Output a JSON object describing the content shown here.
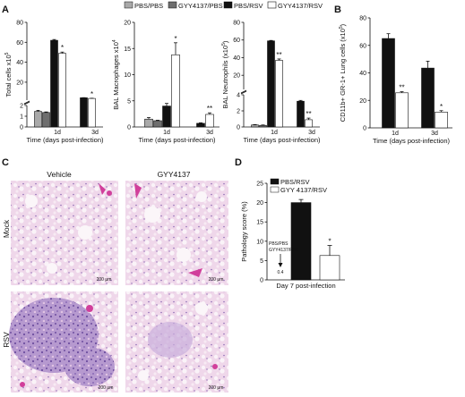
{
  "legend_top": {
    "items": [
      {
        "label": "PBS/PBS",
        "color": "#a9a9a9"
      },
      {
        "label": "GYY4137/PBS",
        "color": "#6e6e6e"
      },
      {
        "label": "PBS/RSV",
        "color": "#111111"
      },
      {
        "label": "GYY4137/RSV",
        "color": "#ffffff"
      }
    ]
  },
  "panels": {
    "a": {
      "letter": "A"
    },
    "b": {
      "letter": "B"
    },
    "c": {
      "letter": "C",
      "col_labels": [
        "Vehicle",
        "GYY4137"
      ],
      "row_labels": [
        "Mock",
        "RSV"
      ],
      "scale_label": "200 μm"
    },
    "d": {
      "letter": "D"
    }
  },
  "colors": {
    "pbs_pbs": "#a9a9a9",
    "gyy_pbs": "#6e6e6e",
    "pbs_rsv": "#111111",
    "gyy_rsv": "#ffffff",
    "stain_pink": "#e6b3d8",
    "stain_purple": "#9a7cc0",
    "stain_magenta": "#d13f9b"
  },
  "chart_data": [
    {
      "id": "A1",
      "type": "bar",
      "ylabel": "Total cells x10",
      "ylabel_exp": "5",
      "xlabel": "Time (days post-infection)",
      "axis_break": true,
      "ylim_lower": [
        0,
        2
      ],
      "ylim_upper": [
        2,
        80
      ],
      "yticks_lower": [
        "0",
        "1",
        "2"
      ],
      "yticks_upper": [
        "20",
        "40",
        "60",
        "80"
      ],
      "categories": [
        "1d",
        "3d"
      ],
      "series": [
        {
          "name": "PBS/PBS",
          "values": [
            1.45,
            null
          ],
          "errors": [
            0.1,
            null
          ]
        },
        {
          "name": "GYY4137/PBS",
          "values": [
            1.35,
            null
          ],
          "errors": [
            0.05,
            null
          ]
        },
        {
          "name": "PBS/RSV",
          "values": [
            62,
            4.4
          ],
          "errors": [
            0.8,
            0.1
          ]
        },
        {
          "name": "GYY4137/RSV",
          "values": [
            49,
            3.7
          ],
          "errors": [
            1.2,
            0.2
          ]
        }
      ],
      "annotations": [
        {
          "text": "*",
          "category": "1d"
        },
        {
          "text": "*",
          "category": "3d"
        }
      ]
    },
    {
      "id": "A2",
      "type": "bar",
      "ylabel": "BAL Macrophages x10",
      "ylabel_exp": "4",
      "xlabel": "Time (days post-infection)",
      "ylim": [
        0,
        20
      ],
      "yticks": [
        "0",
        "5",
        "10",
        "15",
        "20"
      ],
      "categories": [
        "1d",
        "3d"
      ],
      "series": [
        {
          "name": "PBS/PBS",
          "values": [
            1.5,
            null
          ],
          "errors": [
            0.3,
            null
          ]
        },
        {
          "name": "GYY4137/PBS",
          "values": [
            1.2,
            null
          ],
          "errors": [
            0.1,
            null
          ]
        },
        {
          "name": "PBS/RSV",
          "values": [
            4.0,
            0.7
          ],
          "errors": [
            0.5,
            0.1
          ]
        },
        {
          "name": "GYY4137/RSV",
          "values": [
            13.8,
            2.4
          ],
          "errors": [
            2.3,
            0.3
          ]
        }
      ],
      "annotations": [
        {
          "text": "*",
          "category": "1d"
        },
        {
          "text": "**",
          "category": "3d"
        }
      ]
    },
    {
      "id": "A3",
      "type": "bar",
      "ylabel": "BAL Neutrophils (x10",
      "ylabel_exp": "5",
      "ylabel_end": ")",
      "xlabel": "Time (days post-infection)",
      "axis_break": true,
      "ylim_lower": [
        0,
        4
      ],
      "ylim_upper": [
        4,
        80
      ],
      "yticks_lower": [
        "0",
        "2",
        "4"
      ],
      "yticks_upper": [
        "20",
        "40",
        "60",
        "80"
      ],
      "categories": [
        "1d",
        "3d"
      ],
      "series": [
        {
          "name": "PBS/PBS",
          "values": [
            0.25,
            null
          ],
          "errors": [
            0.05,
            null
          ]
        },
        {
          "name": "GYY4137/PBS",
          "values": [
            0.2,
            null
          ],
          "errors": [
            0.05,
            null
          ]
        },
        {
          "name": "PBS/RSV",
          "values": [
            59,
            3.2
          ],
          "errors": [
            0.5,
            0.1
          ]
        },
        {
          "name": "GYY4137/RSV",
          "values": [
            37,
            0.9
          ],
          "errors": [
            1.5,
            0.2
          ]
        }
      ],
      "annotations": [
        {
          "text": "**",
          "category": "1d"
        },
        {
          "text": "**",
          "category": "3d"
        }
      ]
    },
    {
      "id": "B",
      "type": "bar",
      "ylabel": "CD11b+ GR-1+ Lung cells (x10",
      "ylabel_exp": "5",
      "ylabel_end": ")",
      "xlabel": "Time (days post-infection)",
      "ylim": [
        0,
        80
      ],
      "yticks": [
        "0",
        "20",
        "40",
        "60",
        "80"
      ],
      "categories": [
        "1d",
        "3d"
      ],
      "series": [
        {
          "name": "PBS/RSV",
          "values": [
            65,
            43.5
          ],
          "errors": [
            3.5,
            5
          ]
        },
        {
          "name": "GYY4137/RSV",
          "values": [
            25.5,
            11.5
          ],
          "errors": [
            0.8,
            1
          ]
        }
      ],
      "annotations": [
        {
          "text": "**",
          "category": "1d"
        },
        {
          "text": "*",
          "category": "3d"
        }
      ]
    },
    {
      "id": "D",
      "type": "bar",
      "ylabel": "Pathology score (%)",
      "xlabel": "Day 7 post-infection",
      "ylim": [
        0,
        25
      ],
      "yticks": [
        "0",
        "5",
        "10",
        "15",
        "20",
        "25"
      ],
      "legend": [
        "PBS/RSV",
        "GYY 4137/RSV"
      ],
      "series": [
        {
          "name": "PBS/RSV",
          "value": 20,
          "error": 0.8
        },
        {
          "name": "GYY 4137/RSV",
          "value": 6.3,
          "error": 2.6
        }
      ],
      "note_lines": [
        "PBS/PBS",
        "GYY4137/PBS"
      ],
      "note_value": "0.4",
      "annotations": [
        {
          "text": "*",
          "series": "GYY 4137/RSV"
        }
      ]
    }
  ]
}
